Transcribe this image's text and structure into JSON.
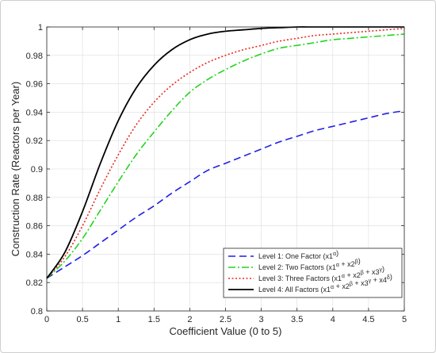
{
  "chart_data": {
    "type": "line",
    "xlabel": "Coefficient Value (0 to 5)",
    "ylabel": "Construction Rate (Reactors per Year)",
    "xlim": [
      0,
      5
    ],
    "ylim": [
      0.8,
      1.0
    ],
    "x_ticks": [
      "0",
      "0.5",
      "1",
      "1.5",
      "2",
      "2.5",
      "3",
      "3.5",
      "4",
      "4.5",
      "5"
    ],
    "y_ticks": [
      "0.8",
      "0.82",
      "0.84",
      "0.86",
      "0.88",
      "0.9",
      "0.92",
      "0.94",
      "0.96",
      "0.98",
      "1"
    ],
    "grid": true,
    "legend_position": "bottom-right",
    "x": [
      0,
      0.25,
      0.5,
      0.75,
      1,
      1.25,
      1.5,
      1.75,
      2,
      2.25,
      2.5,
      2.75,
      3,
      3.25,
      3.5,
      3.75,
      4,
      4.25,
      4.5,
      4.75,
      5
    ],
    "series": [
      {
        "name": "Level 1: One Factor (x1^α)",
        "legend": {
          "prefix": "Level 1: One Factor (x1",
          "parts": [
            {
              "sup": "α"
            }
          ],
          "suffix": ")"
        },
        "color": "#1f1fe6",
        "style": "dashed",
        "values": [
          0.823,
          0.831,
          0.839,
          0.848,
          0.857,
          0.866,
          0.874,
          0.883,
          0.891,
          0.899,
          0.904,
          0.909,
          0.914,
          0.919,
          0.923,
          0.927,
          0.93,
          0.933,
          0.936,
          0.939,
          0.941
        ]
      },
      {
        "name": "Level 2: Two Factors (x1^α + x2^β)",
        "legend": {
          "prefix": "Level 2: Two Factors (x1",
          "parts": [
            {
              "sup": "α"
            },
            {
              "text": " + x2"
            },
            {
              "sup": "β"
            }
          ],
          "suffix": ")"
        },
        "color": "#22d41e",
        "style": "dashdot",
        "values": [
          0.823,
          0.835,
          0.851,
          0.871,
          0.891,
          0.91,
          0.926,
          0.941,
          0.954,
          0.963,
          0.97,
          0.976,
          0.981,
          0.985,
          0.987,
          0.989,
          0.991,
          0.992,
          0.993,
          0.994,
          0.995
        ]
      },
      {
        "name": "Level 3: Three Factors (x1^α + x2^β + x3^γ)",
        "legend": {
          "prefix": "Level 3: Three Factors (x1",
          "parts": [
            {
              "sup": "α"
            },
            {
              "text": " + x2"
            },
            {
              "sup": "β"
            },
            {
              "text": " + x3"
            },
            {
              "sup": "γ"
            }
          ],
          "suffix": ")"
        },
        "color": "#e8281e",
        "style": "dotted",
        "values": [
          0.823,
          0.838,
          0.86,
          0.886,
          0.91,
          0.931,
          0.947,
          0.959,
          0.968,
          0.975,
          0.98,
          0.984,
          0.987,
          0.99,
          0.992,
          0.994,
          0.995,
          0.996,
          0.997,
          0.998,
          0.999
        ]
      },
      {
        "name": "Level 4: All Factors (x1^α + x2^β + x3^γ + x4^δ)",
        "legend": {
          "prefix": "Level 4: All Factors (x1",
          "parts": [
            {
              "sup": "α"
            },
            {
              "text": " + x2"
            },
            {
              "sup": "β"
            },
            {
              "text": " + x3"
            },
            {
              "sup": "γ"
            },
            {
              "text": " + x4"
            },
            {
              "sup": "δ"
            }
          ],
          "suffix": ")"
        },
        "color": "#000000",
        "style": "solid",
        "values": [
          0.823,
          0.841,
          0.87,
          0.904,
          0.934,
          0.957,
          0.973,
          0.984,
          0.991,
          0.995,
          0.997,
          0.998,
          0.999,
          0.9995,
          1.0,
          1.0,
          1.0,
          1.0,
          1.0,
          1.0,
          1.0
        ]
      }
    ]
  }
}
